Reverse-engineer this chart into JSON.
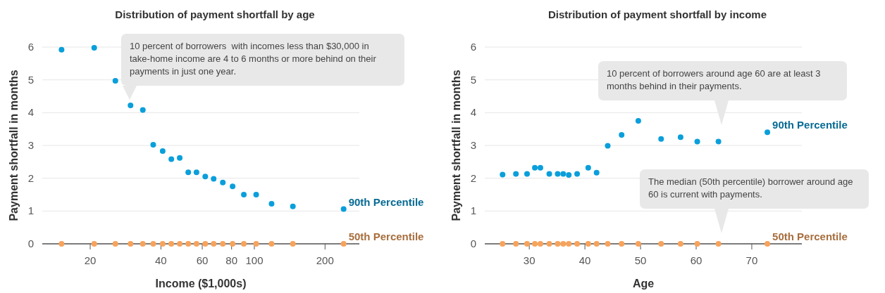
{
  "chart_data": [
    {
      "type": "scatter",
      "title": "Distribution of payment shortfall by age",
      "xlabel": "Income ($1,000s)",
      "ylabel": "Payment shortfall in months",
      "log": "x",
      "grid": "y",
      "legend": false,
      "marker": "circle",
      "xlim": [
        12.5,
        280
      ],
      "xticks": [
        20,
        40,
        60,
        80,
        100,
        200
      ],
      "ylim": [
        0,
        6
      ],
      "yticks": [
        0,
        1,
        2,
        3,
        4,
        5,
        6
      ],
      "annotations": [
        "10 percent of borrowers  with incomes less than $30,000 in take-home income are 4 to 6 months or more behind on their payments in just one year."
      ],
      "series": [
        {
          "name": "90th Percentile",
          "color": "#0a9fdb",
          "x": [
            15.1,
            20.8,
            25.6,
            29.7,
            33.5,
            37.1,
            40.7,
            44.3,
            48.1,
            52.3,
            56.7,
            61.8,
            67.1,
            73.4,
            80.8,
            90.2,
            101.8,
            118.4,
            145.9,
            240
          ],
          "values": [
            5.92,
            5.98,
            4.97,
            4.22,
            4.08,
            3.02,
            2.83,
            2.58,
            2.62,
            2.18,
            2.18,
            2.05,
            1.98,
            1.87,
            1.75,
            1.5,
            1.5,
            1.22,
            1.14,
            1.06
          ]
        },
        {
          "name": "50th Percentile",
          "color": "#f7a35c",
          "x": [
            15.1,
            20.8,
            25.6,
            29.7,
            33.5,
            37.1,
            40.7,
            44.3,
            48.1,
            52.3,
            56.7,
            61.8,
            67.1,
            73.4,
            80.8,
            90.2,
            101.8,
            118.4,
            145.9,
            240
          ],
          "values": [
            0,
            0,
            0,
            0,
            0,
            0,
            0,
            0,
            0,
            0,
            0,
            0,
            0,
            0,
            0,
            0,
            0,
            0,
            0,
            0
          ]
        }
      ]
    },
    {
      "type": "scatter",
      "title": "Distribution of payment shortfall by income",
      "xlabel": "Age",
      "ylabel": "Payment shortfall in months",
      "grid": "y",
      "legend": false,
      "marker": "circle",
      "xlim": [
        22,
        79
      ],
      "xticks": [
        30,
        40,
        50,
        60,
        70
      ],
      "ylim": [
        0,
        6
      ],
      "yticks": [
        0,
        1,
        2,
        3,
        4,
        5,
        6
      ],
      "annotations": [
        "10 percent of borrowers around age 60 are at least 3 months behind in their payments.",
        "The median (50th percentile) borrower around age 60 is current with payments."
      ],
      "series": [
        {
          "name": "90th Percentile",
          "color": "#0a9fdb",
          "x": [
            25.2,
            27.6,
            29.6,
            31,
            32,
            33.6,
            35.1,
            36.1,
            37.1,
            38.6,
            40.6,
            42.1,
            44.1,
            46.6,
            49.6,
            53.7,
            57.2,
            60.2,
            64,
            72.8
          ],
          "values": [
            2.11,
            2.13,
            2.13,
            2.32,
            2.32,
            2.13,
            2.13,
            2.13,
            2.1,
            2.13,
            2.32,
            2.17,
            2.99,
            3.32,
            3.75,
            3.2,
            3.25,
            3.12,
            3.12,
            3.4
          ]
        },
        {
          "name": "50th Percentile",
          "color": "#f7a35c",
          "x": [
            25.2,
            27.6,
            29.6,
            31,
            32,
            33.6,
            35.1,
            36.1,
            37.1,
            38.6,
            40.6,
            42.1,
            44.1,
            46.6,
            49.6,
            53.7,
            57.2,
            60.2,
            64,
            72.8
          ],
          "values": [
            0,
            0,
            0,
            0,
            0,
            0,
            0,
            0,
            0,
            0,
            0,
            0,
            0,
            0,
            0,
            0,
            0,
            0,
            0,
            0
          ]
        }
      ]
    }
  ]
}
